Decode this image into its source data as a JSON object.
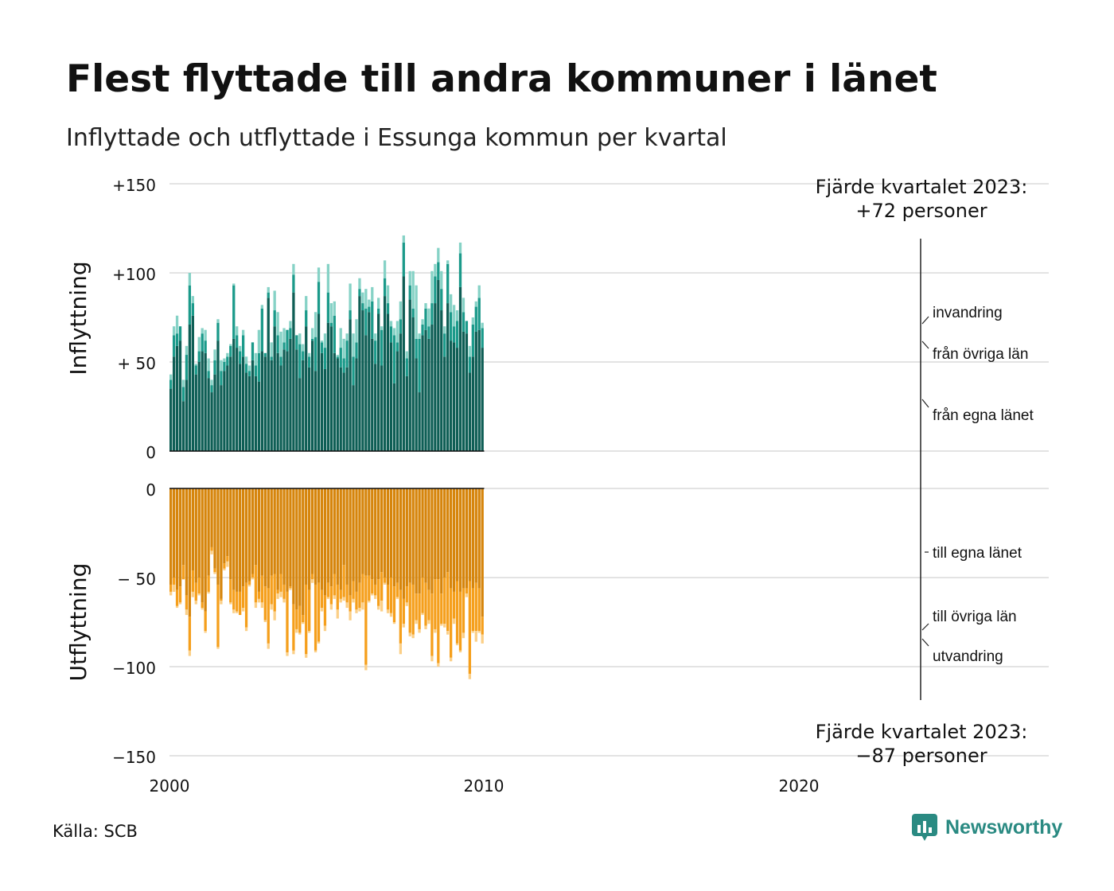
{
  "title": "Flest flyttade till andra kommuner i länet",
  "subtitle": "Inflyttade och utflyttade i Essunga kommun per kvartal",
  "source": "Källa: SCB",
  "brand": "Newsworthy",
  "chart_data": {
    "type": "bar",
    "stacked": true,
    "x_start": "2000 Q1",
    "x_ticks": [
      "2000",
      "2010",
      "2020"
    ],
    "panels": [
      {
        "ylabel": "Inflyttning",
        "yticks": [
          "+150",
          "+100",
          "+ 50",
          "0"
        ],
        "ylim": [
          0,
          150
        ],
        "annotation": {
          "line1": "Fjärde kvartalet 2023:",
          "line2": "+72 personer"
        },
        "series": [
          {
            "name": "från egna länet",
            "color": "#0e5e55",
            "values": [
              35,
              53,
              59,
              62,
              28,
              40,
              71,
              76,
              43,
              50,
              56,
              55,
              41,
              33,
              43,
              62,
              37,
              45,
              48,
              53,
              63,
              58,
              49,
              53,
              44,
              42,
              51,
              42,
              39,
              56,
              53,
              86,
              51,
              70,
              55,
              48,
              57,
              56,
              63,
              89,
              57,
              41,
              51,
              70,
              47,
              62,
              45,
              77,
              55,
              46,
              72,
              70,
              55,
              52,
              47,
              44,
              47,
              74,
              37,
              52,
              87,
              79,
              65,
              78,
              63,
              49,
              77,
              48,
              87,
              77,
              61,
              38,
              56,
              66,
              98,
              42,
              85,
              75,
              52,
              33,
              65,
              68,
              63,
              71,
              83,
              96,
              79,
              53,
              83,
              62,
              61,
              58,
              92,
              67,
              66,
              44,
              53,
              67,
              68,
              58
            ]
          },
          {
            "name": "från övriga län",
            "color": "#1b9a8a",
            "values": [
              5,
              12,
              7,
              8,
              8,
              14,
              22,
              7,
              5,
              6,
              10,
              7,
              4,
              4,
              8,
              10,
              8,
              5,
              5,
              6,
              30,
              7,
              7,
              12,
              5,
              3,
              10,
              6,
              16,
              24,
              2,
              3,
              2,
              9,
              10,
              5,
              4,
              12,
              6,
              10,
              8,
              19,
              5,
              9,
              6,
              1,
              19,
              18,
              6,
              12,
              17,
              2,
              21,
              1,
              11,
              8,
              15,
              5,
              16,
              9,
              4,
              4,
              15,
              3,
              21,
              13,
              3,
              20,
              10,
              6,
              9,
              27,
              5,
              8,
              19,
              10,
              8,
              5,
              11,
              30,
              6,
              12,
              7,
              12,
              15,
              10,
              12,
              13,
              22,
              16,
              9,
              15,
              19,
              11,
              7,
              9,
              18,
              14,
              18,
              11
            ]
          },
          {
            "name": "invandring",
            "color": "#86d2c6",
            "values": [
              3,
              5,
              10,
              0,
              4,
              5,
              7,
              4,
              1,
              8,
              3,
              6,
              7,
              3,
              6,
              2,
              6,
              2,
              2,
              1,
              1,
              5,
              3,
              3,
              4,
              3,
              0,
              7,
              13,
              2,
              0,
              3,
              8,
              11,
              13,
              14,
              8,
              0,
              4,
              6,
              0,
              6,
              4,
              8,
              2,
              6,
              14,
              8,
              1,
              8,
              16,
              11,
              8,
              1,
              11,
              11,
              4,
              15,
              13,
              13,
              6,
              6,
              11,
              4,
              8,
              4,
              6,
              2,
              10,
              10,
              3,
              4,
              12,
              10,
              4,
              4,
              8,
              21,
              30,
              3,
              3,
              3,
              10,
              18,
              7,
              8,
              10,
              4,
              2,
              10,
              12,
              6,
              6,
              8,
              0,
              6,
              4,
              3,
              7,
              3
            ]
          }
        ]
      },
      {
        "ylabel": "Utflyttning",
        "yticks": [
          "0",
          "− 50",
          "−100",
          "−150"
        ],
        "ylim": [
          -150,
          0
        ],
        "annotation": {
          "line1": "Fjärde kvartalet 2023:",
          "line2": "−87 personer"
        },
        "series": [
          {
            "name": "till egna länet",
            "color": "#d6850c",
            "values": [
              -54,
              -50,
              -57,
              -55,
              -43,
              -60,
              -72,
              -46,
              -53,
              -50,
              -64,
              -69,
              -49,
              -33,
              -45,
              -54,
              -62,
              -42,
              -38,
              -51,
              -57,
              -58,
              -58,
              -55,
              -53,
              -52,
              -48,
              -43,
              -58,
              -49,
              -55,
              -56,
              -49,
              -48,
              -57,
              -48,
              -54,
              -58,
              -55,
              -65,
              -68,
              -66,
              -71,
              -54,
              -57,
              -48,
              -54,
              -53,
              -57,
              -60,
              -53,
              -55,
              -48,
              -54,
              -57,
              -43,
              -54,
              -60,
              -52,
              -58,
              -53,
              -48,
              -49,
              -49,
              -51,
              -54,
              -51,
              -47,
              -50,
              -54,
              -50,
              -55,
              -53,
              -57,
              -62,
              -55,
              -53,
              -54,
              -59,
              -59,
              -50,
              -53,
              -57,
              -59,
              -51,
              -51,
              -59,
              -50,
              -47,
              -56,
              -58,
              -52,
              -58,
              -56,
              -56,
              -52,
              -56,
              -53,
              -56,
              -72
            ]
          },
          {
            "name": "till övriga län",
            "color": "#f59f1c",
            "values": [
              -4,
              -4,
              -9,
              -9,
              -8,
              -8,
              -19,
              -12,
              -10,
              -9,
              -3,
              -11,
              -9,
              -2,
              -2,
              -35,
              -1,
              -3,
              -3,
              -13,
              -11,
              -11,
              -13,
              -12,
              -25,
              -2,
              -2,
              -21,
              -4,
              -15,
              -19,
              -31,
              -16,
              -21,
              -2,
              -10,
              -8,
              -34,
              -1,
              -26,
              -11,
              -15,
              -4,
              -39,
              -23,
              -3,
              -37,
              -33,
              -10,
              -17,
              -8,
              -10,
              -12,
              -14,
              -5,
              -18,
              -10,
              -9,
              -10,
              -10,
              -14,
              -16,
              -50,
              -14,
              -8,
              -6,
              -15,
              -16,
              -3,
              -14,
              -20,
              -20,
              -8,
              -30,
              -14,
              -9,
              -28,
              -28,
              -15,
              -20,
              -20,
              -24,
              -17,
              -35,
              -28,
              -47,
              -17,
              -26,
              -33,
              -39,
              -15,
              -35,
              -33,
              -25,
              -3,
              -52,
              -24,
              -27,
              -24,
              -10
            ]
          },
          {
            "name": "utvandring",
            "color": "#fbcf87",
            "values": [
              -2,
              -4,
              -1,
              -1,
              0,
              -3,
              -3,
              -3,
              -2,
              -1,
              -1,
              -1,
              -1,
              -2,
              -1,
              -1,
              -2,
              -1,
              -3,
              -1,
              -2,
              -1,
              0,
              -2,
              -2,
              -1,
              -1,
              -3,
              -2,
              -3,
              -1,
              -3,
              -3,
              -5,
              -3,
              -3,
              -2,
              -2,
              -1,
              -2,
              -2,
              -1,
              -1,
              -2,
              -1,
              -2,
              -1,
              -1,
              -2,
              -3,
              -1,
              -3,
              -2,
              -5,
              -2,
              -2,
              -3,
              -5,
              -2,
              -2,
              -2,
              -4,
              -3,
              -1,
              -1,
              -2,
              -2,
              -6,
              -1,
              -2,
              -2,
              -1,
              -1,
              -6,
              -2,
              -2,
              -2,
              -2,
              -2,
              -2,
              -1,
              -2,
              -2,
              -3,
              -2,
              -2,
              -1,
              -2,
              -2,
              -2,
              -3,
              -1,
              -1,
              -3,
              -2,
              -3,
              -1,
              -6,
              -1,
              -5
            ]
          }
        ]
      }
    ]
  }
}
